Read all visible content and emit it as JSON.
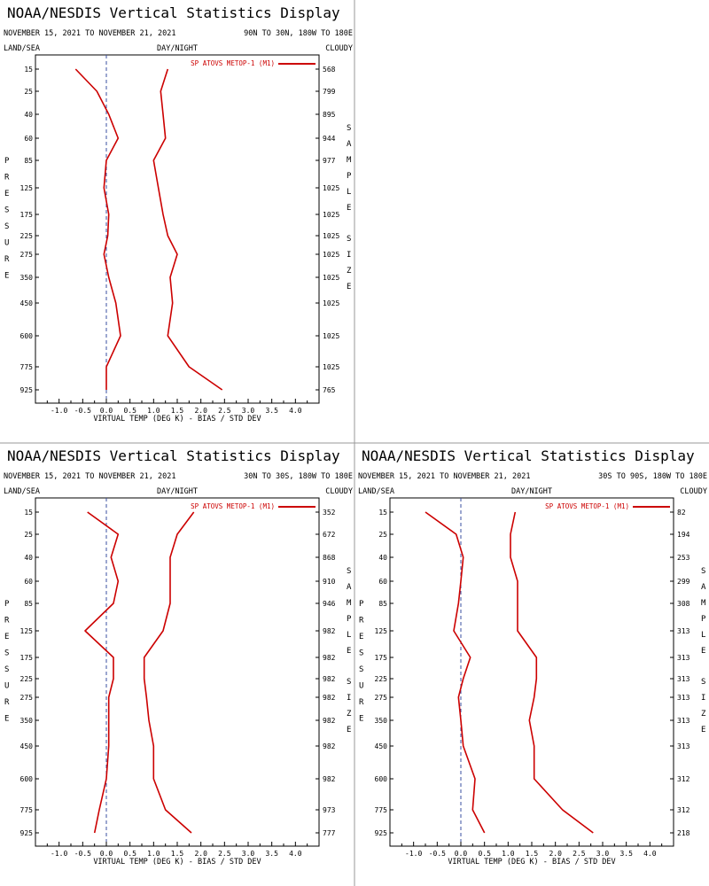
{
  "colors": {
    "series": "#cc0000",
    "zero_line": "#3a4fa0",
    "divider": "#999999"
  },
  "chart_data": [
    {
      "type": "line",
      "title": "NOAA/NESDIS Vertical Statistics Display",
      "date_range": "NOVEMBER 15, 2021 TO NOVEMBER 21, 2021",
      "region": "90N TO 30N, 180W TO 180E",
      "header_left": "LAND/SEA",
      "header_mid": "DAY/NIGHT",
      "header_right": "CLOUDY",
      "xlabel": "VIRTUAL TEMP (DEG K) - BIAS / STD DEV",
      "ylabel": "PRESSURE",
      "right_label": "SAMPLE SIZE",
      "legend": "SP ATOVS METOP-1 (M1)",
      "xlim": [
        -1.5,
        4.5
      ],
      "x_ticks": [
        "-1.0",
        "-0.5",
        "0.0",
        "0.5",
        "1.0",
        "1.5",
        "2.0",
        "2.5",
        "3.0",
        "3.5",
        "4.0"
      ],
      "pressure_levels": [
        "15",
        "25",
        "40",
        "60",
        "85",
        "125",
        "175",
        "225",
        "275",
        "350",
        "450",
        "600",
        "775",
        "925"
      ],
      "sample_size": [
        "568",
        "799",
        "895",
        "944",
        "977",
        "1025",
        "1025",
        "1025",
        "1025",
        "1025",
        "1025",
        "1025",
        "1025",
        "765"
      ],
      "series": [
        {
          "values": [
            -0.65,
            -0.2,
            0.05,
            0.25,
            0.0,
            -0.05,
            0.05,
            0.03,
            -0.05,
            0.05,
            0.2,
            0.3,
            0.0,
            0.0
          ]
        },
        {
          "values": [
            1.3,
            1.15,
            1.2,
            1.25,
            1.0,
            1.1,
            1.2,
            1.3,
            1.5,
            1.35,
            1.4,
            1.3,
            1.75,
            2.45
          ]
        }
      ]
    },
    {
      "type": "line",
      "title": "NOAA/NESDIS Vertical Statistics Display",
      "date_range": "NOVEMBER 15, 2021 TO NOVEMBER 21, 2021",
      "region": "30N TO 30S, 180W TO 180E",
      "header_left": "LAND/SEA",
      "header_mid": "DAY/NIGHT",
      "header_right": "CLOUDY",
      "xlabel": "VIRTUAL TEMP (DEG K) - BIAS / STD DEV",
      "ylabel": "PRESSURE",
      "right_label": "SAMPLE SIZE",
      "legend": "SP ATOVS METOP-1 (M1)",
      "xlim": [
        -1.5,
        4.5
      ],
      "x_ticks": [
        "-1.0",
        "-0.5",
        "0.0",
        "0.5",
        "1.0",
        "1.5",
        "2.0",
        "2.5",
        "3.0",
        "3.5",
        "4.0"
      ],
      "pressure_levels": [
        "15",
        "25",
        "40",
        "60",
        "85",
        "125",
        "175",
        "225",
        "275",
        "350",
        "450",
        "600",
        "775",
        "925"
      ],
      "sample_size": [
        "352",
        "672",
        "868",
        "910",
        "946",
        "982",
        "982",
        "982",
        "982",
        "982",
        "982",
        "982",
        "973",
        "777"
      ],
      "series": [
        {
          "values": [
            -0.4,
            0.25,
            0.1,
            0.25,
            0.15,
            -0.45,
            0.15,
            0.15,
            0.05,
            0.05,
            0.05,
            0.0,
            -0.15,
            -0.25
          ]
        },
        {
          "values": [
            1.85,
            1.5,
            1.35,
            1.35,
            1.35,
            1.2,
            0.8,
            0.8,
            0.85,
            0.9,
            1.0,
            1.0,
            1.25,
            1.8
          ]
        }
      ]
    },
    {
      "type": "line",
      "title": "NOAA/NESDIS Vertical Statistics Display",
      "date_range": "NOVEMBER 15, 2021 TO NOVEMBER 21, 2021",
      "region": "30S TO 90S, 180W TO 180E",
      "header_left": "LAND/SEA",
      "header_mid": "DAY/NIGHT",
      "header_right": "CLOUDY",
      "xlabel": "VIRTUAL TEMP (DEG K) - BIAS / STD DEV",
      "ylabel": "PRESSURE",
      "right_label": "SAMPLE SIZE",
      "legend": "SP ATOVS METOP-1 (M1)",
      "xlim": [
        -1.5,
        4.5
      ],
      "x_ticks": [
        "-1.0",
        "-0.5",
        "0.0",
        "0.5",
        "1.0",
        "1.5",
        "2.0",
        "2.5",
        "3.0",
        "3.5",
        "4.0"
      ],
      "pressure_levels": [
        "15",
        "25",
        "40",
        "60",
        "85",
        "125",
        "175",
        "225",
        "275",
        "350",
        "450",
        "600",
        "775",
        "925"
      ],
      "sample_size": [
        "82",
        "194",
        "253",
        "299",
        "308",
        "313",
        "313",
        "313",
        "313",
        "313",
        "313",
        "312",
        "312",
        "218"
      ],
      "series": [
        {
          "values": [
            -0.75,
            -0.1,
            0.05,
            0.0,
            -0.05,
            -0.15,
            0.2,
            0.05,
            -0.05,
            0.0,
            0.05,
            0.3,
            0.25,
            0.5
          ]
        },
        {
          "values": [
            1.15,
            1.05,
            1.05,
            1.2,
            1.2,
            1.2,
            1.6,
            1.6,
            1.55,
            1.45,
            1.55,
            1.55,
            2.15,
            2.8
          ]
        }
      ]
    }
  ]
}
